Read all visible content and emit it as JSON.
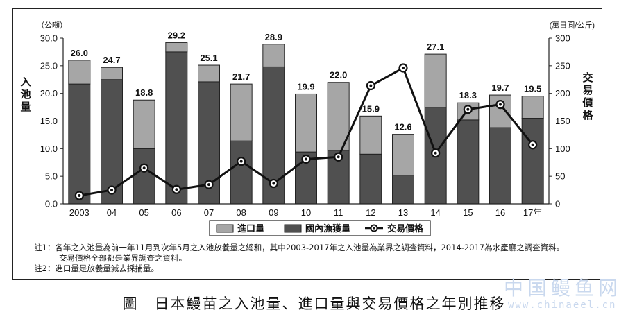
{
  "chart_data": {
    "type": "bar",
    "categories": [
      "2003",
      "04",
      "05",
      "06",
      "07",
      "08",
      "09",
      "10",
      "11",
      "12",
      "13",
      "14",
      "15",
      "16",
      "17年"
    ],
    "series": [
      {
        "name": "進口量",
        "values": [
          4.3,
          2.2,
          8.8,
          1.7,
          3.0,
          10.3,
          4.1,
          10.5,
          12.3,
          6.9,
          7.4,
          9.6,
          3.1,
          5.9,
          4.0
        ]
      },
      {
        "name": "國內漁獲量",
        "values": [
          21.7,
          22.5,
          10.0,
          27.5,
          22.1,
          11.4,
          24.8,
          9.4,
          9.7,
          9.0,
          5.2,
          17.5,
          15.2,
          13.8,
          15.5
        ]
      },
      {
        "name": "交易價格",
        "values": [
          15,
          25,
          65,
          26,
          35,
          77,
          37,
          81,
          85,
          214,
          246,
          92,
          171,
          180,
          107
        ]
      }
    ],
    "totals": [
      "26.0",
      "24.7",
      "18.8",
      "29.2",
      "25.1",
      "21.7",
      "28.9",
      "19.9",
      "22.0",
      "15.9",
      "12.6",
      "27.1",
      "18.3",
      "19.7",
      "19.5"
    ],
    "y_left": {
      "unit": "（公噸）",
      "label": "入池量",
      "min": 0,
      "max": 30,
      "ticks": [
        "0.0",
        "5.0",
        "10.0",
        "15.0",
        "20.0",
        "25.0",
        "30.0"
      ]
    },
    "y_right": {
      "unit": "(萬日圓/公斤)",
      "label": "交易價格",
      "min": 0,
      "max": 300,
      "ticks": [
        "0",
        "50",
        "100",
        "150",
        "200",
        "250",
        "300"
      ]
    },
    "legend": {
      "position": "bottom",
      "items": [
        "進口量",
        "國內漁獲量",
        "交易價格"
      ]
    },
    "colors": {
      "import": "#a6a6a6",
      "domestic": "#505050",
      "price": "#111111",
      "border": "#222222"
    }
  },
  "notes": [
    "註1：各年之入池量為前一年11月到次年5月之入池放養量之總和，其中2003-2017年之入池量為業界之調查資料，2014-2017為水產廳之調查資料。",
    "交易價格全部都是業界調查之資料。",
    "註2：進口量是放養量減去採捕量。"
  ],
  "caption": "圖　日本鰻苗之入池量、進口量與交易價格之年別推移",
  "watermark": {
    "text": "中国鳗鱼网",
    "url": "www.chinaeel.cn"
  }
}
